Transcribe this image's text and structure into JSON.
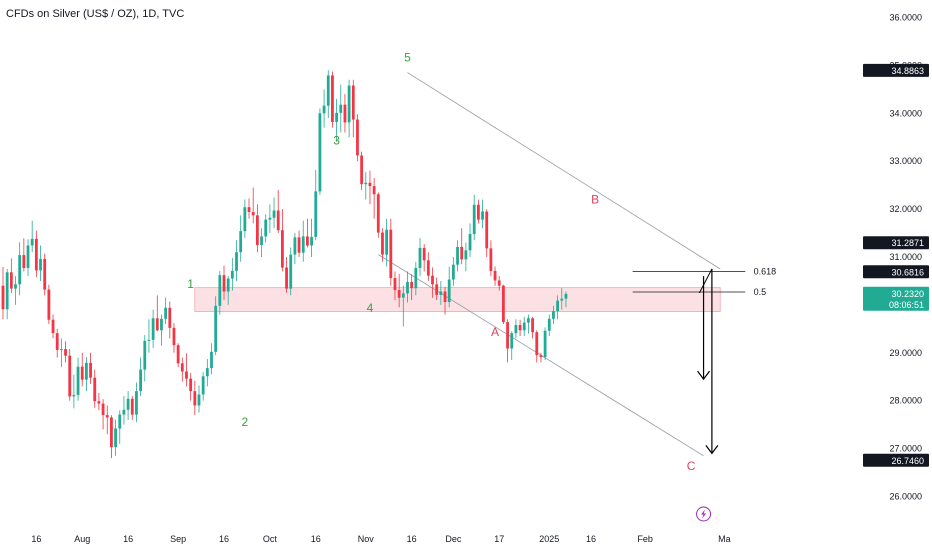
{
  "header": {
    "title": "CFDs on Silver (US$ / OZ), 1D, TVC"
  },
  "colors": {
    "up": "#22ab94",
    "down": "#f23645",
    "wave_impulse": "#3aa23a",
    "wave_corrective": "#e0415f",
    "zone_fill": "#fbe1e4",
    "zone_stroke": "#f4a6ae",
    "channel": "#9598a1",
    "arrow": "#000000",
    "badge_dark": "#131722",
    "badge_green": "#22ab94",
    "event_icon": "#9c27b0"
  },
  "chart_data": {
    "type": "candlestick",
    "y_axis": {
      "ylim": [
        25.7,
        36.25
      ],
      "ticks": [
        "26.0000",
        "27.0000",
        "28.0000",
        "29.0000",
        "30.0000",
        "31.0000",
        "32.0000",
        "33.0000",
        "34.0000",
        "35.0000",
        "36.0000"
      ]
    },
    "x_axis": {
      "labels": [
        {
          "text": "16",
          "i": 8
        },
        {
          "text": "Aug",
          "i": 19
        },
        {
          "text": "16",
          "i": 30
        },
        {
          "text": "Sep",
          "i": 42
        },
        {
          "text": "16",
          "i": 53
        },
        {
          "text": "Oct",
          "i": 64
        },
        {
          "text": "16",
          "i": 75
        },
        {
          "text": "Nov",
          "i": 87
        },
        {
          "text": "16",
          "i": 98
        },
        {
          "text": "Dec",
          "i": 108
        },
        {
          "text": "17",
          "i": 119
        },
        {
          "text": "2025",
          "i": 131
        },
        {
          "text": "16",
          "i": 141
        },
        {
          "text": "Feb",
          "i": 154
        },
        {
          "text": "Ma",
          "i": 173
        }
      ]
    },
    "candles": [
      [
        30.4,
        30.79,
        29.7,
        29.91
      ],
      [
        29.91,
        30.75,
        29.7,
        30.68
      ],
      [
        30.68,
        30.97,
        30.25,
        30.34
      ],
      [
        30.34,
        30.6,
        30.0,
        30.43
      ],
      [
        30.43,
        31.31,
        30.2,
        31.04
      ],
      [
        31.04,
        31.39,
        30.7,
        30.77
      ],
      [
        30.77,
        31.37,
        30.6,
        31.24
      ],
      [
        31.24,
        31.76,
        31.1,
        31.38
      ],
      [
        31.38,
        31.55,
        30.58,
        30.72
      ],
      [
        30.72,
        31.24,
        30.5,
        30.96
      ],
      [
        30.96,
        31.07,
        30.2,
        30.32
      ],
      [
        30.32,
        30.42,
        29.6,
        29.69
      ],
      [
        29.69,
        29.8,
        29.3,
        29.41
      ],
      [
        29.41,
        29.5,
        28.9,
        29.06
      ],
      [
        29.06,
        29.3,
        28.7,
        29.08
      ],
      [
        29.08,
        29.24,
        28.8,
        28.94
      ],
      [
        28.94,
        29.08,
        28.0,
        28.09
      ],
      [
        28.09,
        28.54,
        27.84,
        28.12
      ],
      [
        28.12,
        28.9,
        28.0,
        28.71
      ],
      [
        28.71,
        29.0,
        28.3,
        28.44
      ],
      [
        28.44,
        28.91,
        28.2,
        28.79
      ],
      [
        28.79,
        29.0,
        28.35,
        28.48
      ],
      [
        28.48,
        28.65,
        27.85,
        27.99
      ],
      [
        27.99,
        28.16,
        27.8,
        27.94
      ],
      [
        27.94,
        28.03,
        27.4,
        27.7
      ],
      [
        27.7,
        27.9,
        27.3,
        27.65
      ],
      [
        27.65,
        27.7,
        26.8,
        27.03
      ],
      [
        27.03,
        27.6,
        26.85,
        27.42
      ],
      [
        27.42,
        27.8,
        27.1,
        27.71
      ],
      [
        27.71,
        28.1,
        27.5,
        27.81
      ],
      [
        27.81,
        28.2,
        27.6,
        28.04
      ],
      [
        28.04,
        28.1,
        27.6,
        27.71
      ],
      [
        27.71,
        28.38,
        27.55,
        28.2
      ],
      [
        28.2,
        28.9,
        28.1,
        28.65
      ],
      [
        28.65,
        29.37,
        28.4,
        29.25
      ],
      [
        29.25,
        29.7,
        29.0,
        29.27
      ],
      [
        29.27,
        29.9,
        29.1,
        29.72
      ],
      [
        29.72,
        30.2,
        29.45,
        29.47
      ],
      [
        29.47,
        29.8,
        29.15,
        29.71
      ],
      [
        29.71,
        30.15,
        29.6,
        29.94
      ],
      [
        29.94,
        30.07,
        29.3,
        29.52
      ],
      [
        29.52,
        29.62,
        29.0,
        29.16
      ],
      [
        29.16,
        29.2,
        28.7,
        28.78
      ],
      [
        28.78,
        28.9,
        28.4,
        28.61
      ],
      [
        28.61,
        28.99,
        28.3,
        28.46
      ],
      [
        28.46,
        28.58,
        28.0,
        28.2
      ],
      [
        28.2,
        28.42,
        27.7,
        27.9
      ],
      [
        27.9,
        28.32,
        27.75,
        28.13
      ],
      [
        28.13,
        28.6,
        28.0,
        28.51
      ],
      [
        28.51,
        28.87,
        28.3,
        28.68
      ],
      [
        28.68,
        29.2,
        28.55,
        29.02
      ],
      [
        29.02,
        30.18,
        28.95,
        29.98
      ],
      [
        29.98,
        30.71,
        29.8,
        30.62
      ],
      [
        30.62,
        30.82,
        30.1,
        30.28
      ],
      [
        30.28,
        30.6,
        30.0,
        30.55
      ],
      [
        30.55,
        30.98,
        30.3,
        30.71
      ],
      [
        30.71,
        31.35,
        30.5,
        31.1
      ],
      [
        31.1,
        31.87,
        30.9,
        31.54
      ],
      [
        31.54,
        32.2,
        31.4,
        32.04
      ],
      [
        32.04,
        32.22,
        31.8,
        31.94
      ],
      [
        31.94,
        32.45,
        31.7,
        31.87
      ],
      [
        31.87,
        32.1,
        31.1,
        31.25
      ],
      [
        31.25,
        31.6,
        31.0,
        31.43
      ],
      [
        31.43,
        31.89,
        31.3,
        31.78
      ],
      [
        31.78,
        32.1,
        31.5,
        31.82
      ],
      [
        31.82,
        32.24,
        31.6,
        31.97
      ],
      [
        31.97,
        32.4,
        31.5,
        31.56
      ],
      [
        31.56,
        32.0,
        30.7,
        30.78
      ],
      [
        30.78,
        31.0,
        30.25,
        30.34
      ],
      [
        30.34,
        31.2,
        30.2,
        31.05
      ],
      [
        31.05,
        31.5,
        30.85,
        31.41
      ],
      [
        31.41,
        31.55,
        31.0,
        31.09
      ],
      [
        31.09,
        31.76,
        30.9,
        31.43
      ],
      [
        31.43,
        31.8,
        31.2,
        31.24
      ],
      [
        31.24,
        31.8,
        31.0,
        31.42
      ],
      [
        31.42,
        32.82,
        31.35,
        32.37
      ],
      [
        32.37,
        34.1,
        32.3,
        34.0
      ],
      [
        34.0,
        34.5,
        33.7,
        34.16
      ],
      [
        34.16,
        34.9,
        33.9,
        34.79
      ],
      [
        34.79,
        34.87,
        33.7,
        33.82
      ],
      [
        33.82,
        34.3,
        33.4,
        34.01
      ],
      [
        34.01,
        34.6,
        33.6,
        34.18
      ],
      [
        34.18,
        34.4,
        33.6,
        33.81
      ],
      [
        33.81,
        34.7,
        33.5,
        34.58
      ],
      [
        34.58,
        34.7,
        33.5,
        33.87
      ],
      [
        33.87,
        33.98,
        33.0,
        33.12
      ],
      [
        33.12,
        33.2,
        32.4,
        32.52
      ],
      [
        32.52,
        32.77,
        32.2,
        32.55
      ],
      [
        32.55,
        32.8,
        32.1,
        32.48
      ],
      [
        32.48,
        32.65,
        31.8,
        32.31
      ],
      [
        32.31,
        32.35,
        31.4,
        31.51
      ],
      [
        31.51,
        31.6,
        30.9,
        31.05
      ],
      [
        31.05,
        31.8,
        30.8,
        31.57
      ],
      [
        31.57,
        31.8,
        30.4,
        30.56
      ],
      [
        30.56,
        30.7,
        30.1,
        30.31
      ],
      [
        30.31,
        30.65,
        29.95,
        30.15
      ],
      [
        30.15,
        30.4,
        29.55,
        30.24
      ],
      [
        30.24,
        30.7,
        30.05,
        30.48
      ],
      [
        30.48,
        30.64,
        30.1,
        30.35
      ],
      [
        30.35,
        30.9,
        30.2,
        30.77
      ],
      [
        30.77,
        31.4,
        30.6,
        31.19
      ],
      [
        31.19,
        31.27,
        30.7,
        30.93
      ],
      [
        30.93,
        31.1,
        30.5,
        30.61
      ],
      [
        30.61,
        30.78,
        30.15,
        30.43
      ],
      [
        30.43,
        30.57,
        30.1,
        30.21
      ],
      [
        30.21,
        30.5,
        30.0,
        30.28
      ],
      [
        30.28,
        30.38,
        29.8,
        30.06
      ],
      [
        30.06,
        30.8,
        29.95,
        30.53
      ],
      [
        30.53,
        31.0,
        30.4,
        30.84
      ],
      [
        30.84,
        31.35,
        30.7,
        31.21
      ],
      [
        31.21,
        31.6,
        30.85,
        30.95
      ],
      [
        30.95,
        31.3,
        30.7,
        31.14
      ],
      [
        31.14,
        31.7,
        31.0,
        31.48
      ],
      [
        31.48,
        32.3,
        31.35,
        32.09
      ],
      [
        32.09,
        32.2,
        31.7,
        31.78
      ],
      [
        31.78,
        32.2,
        31.6,
        31.95
      ],
      [
        31.95,
        32.0,
        31.0,
        31.18
      ],
      [
        31.18,
        31.35,
        30.6,
        30.71
      ],
      [
        30.71,
        30.8,
        30.4,
        30.51
      ],
      [
        30.51,
        30.6,
        30.3,
        30.4
      ],
      [
        30.4,
        30.42,
        29.6,
        29.64
      ],
      [
        29.64,
        29.7,
        28.8,
        29.09
      ],
      [
        29.09,
        29.45,
        28.85,
        29.41
      ],
      [
        29.41,
        29.7,
        29.3,
        29.58
      ],
      [
        29.58,
        29.69,
        29.35,
        29.47
      ],
      [
        29.47,
        29.75,
        29.35,
        29.63
      ],
      [
        29.63,
        29.8,
        29.4,
        29.72
      ],
      [
        29.72,
        29.75,
        29.3,
        29.43
      ],
      [
        29.43,
        29.47,
        28.8,
        28.95
      ],
      [
        28.95,
        29.0,
        28.8,
        28.91
      ],
      [
        28.91,
        29.53,
        28.85,
        29.46
      ],
      [
        29.46,
        29.8,
        29.35,
        29.71
      ],
      [
        29.71,
        29.98,
        29.6,
        29.87
      ],
      [
        29.87,
        30.2,
        29.7,
        30.09
      ],
      [
        30.09,
        30.35,
        29.9,
        30.13
      ],
      [
        30.13,
        30.28,
        29.95,
        30.23
      ]
    ]
  },
  "annotations": {
    "waves": [
      {
        "label": "1",
        "i": 45,
        "price": 30.35,
        "group": "impulse"
      },
      {
        "label": "2",
        "i": 58,
        "price": 27.47,
        "group": "impulse"
      },
      {
        "label": "3",
        "i": 80,
        "price": 33.35,
        "group": "impulse"
      },
      {
        "label": "4",
        "i": 88,
        "price": 29.85,
        "group": "impulse"
      },
      {
        "label": "5",
        "i": 97,
        "price": 35.08,
        "group": "impulse"
      },
      {
        "label": "A",
        "i": 118,
        "price": 29.35,
        "group": "corrective"
      },
      {
        "label": "B",
        "i": 142,
        "price": 32.12,
        "group": "corrective"
      },
      {
        "label": "C",
        "i": 165,
        "price": 26.55,
        "group": "corrective"
      }
    ],
    "fib_levels": [
      {
        "label": "0.618",
        "price": 30.7
      },
      {
        "label": "0.5",
        "price": 30.27
      }
    ],
    "price_badges": [
      {
        "text": "34.8863",
        "price": 34.8863,
        "style": "dark"
      },
      {
        "text": "31.2871",
        "price": 31.2871,
        "style": "dark"
      },
      {
        "text": "30.6816",
        "price": 30.6816,
        "style": "dark"
      },
      {
        "text": "30.2320",
        "price": 30.232,
        "style": "green",
        "sub": "08:06:51"
      },
      {
        "text": "26.7460",
        "price": 26.746,
        "style": "dark"
      }
    ]
  }
}
